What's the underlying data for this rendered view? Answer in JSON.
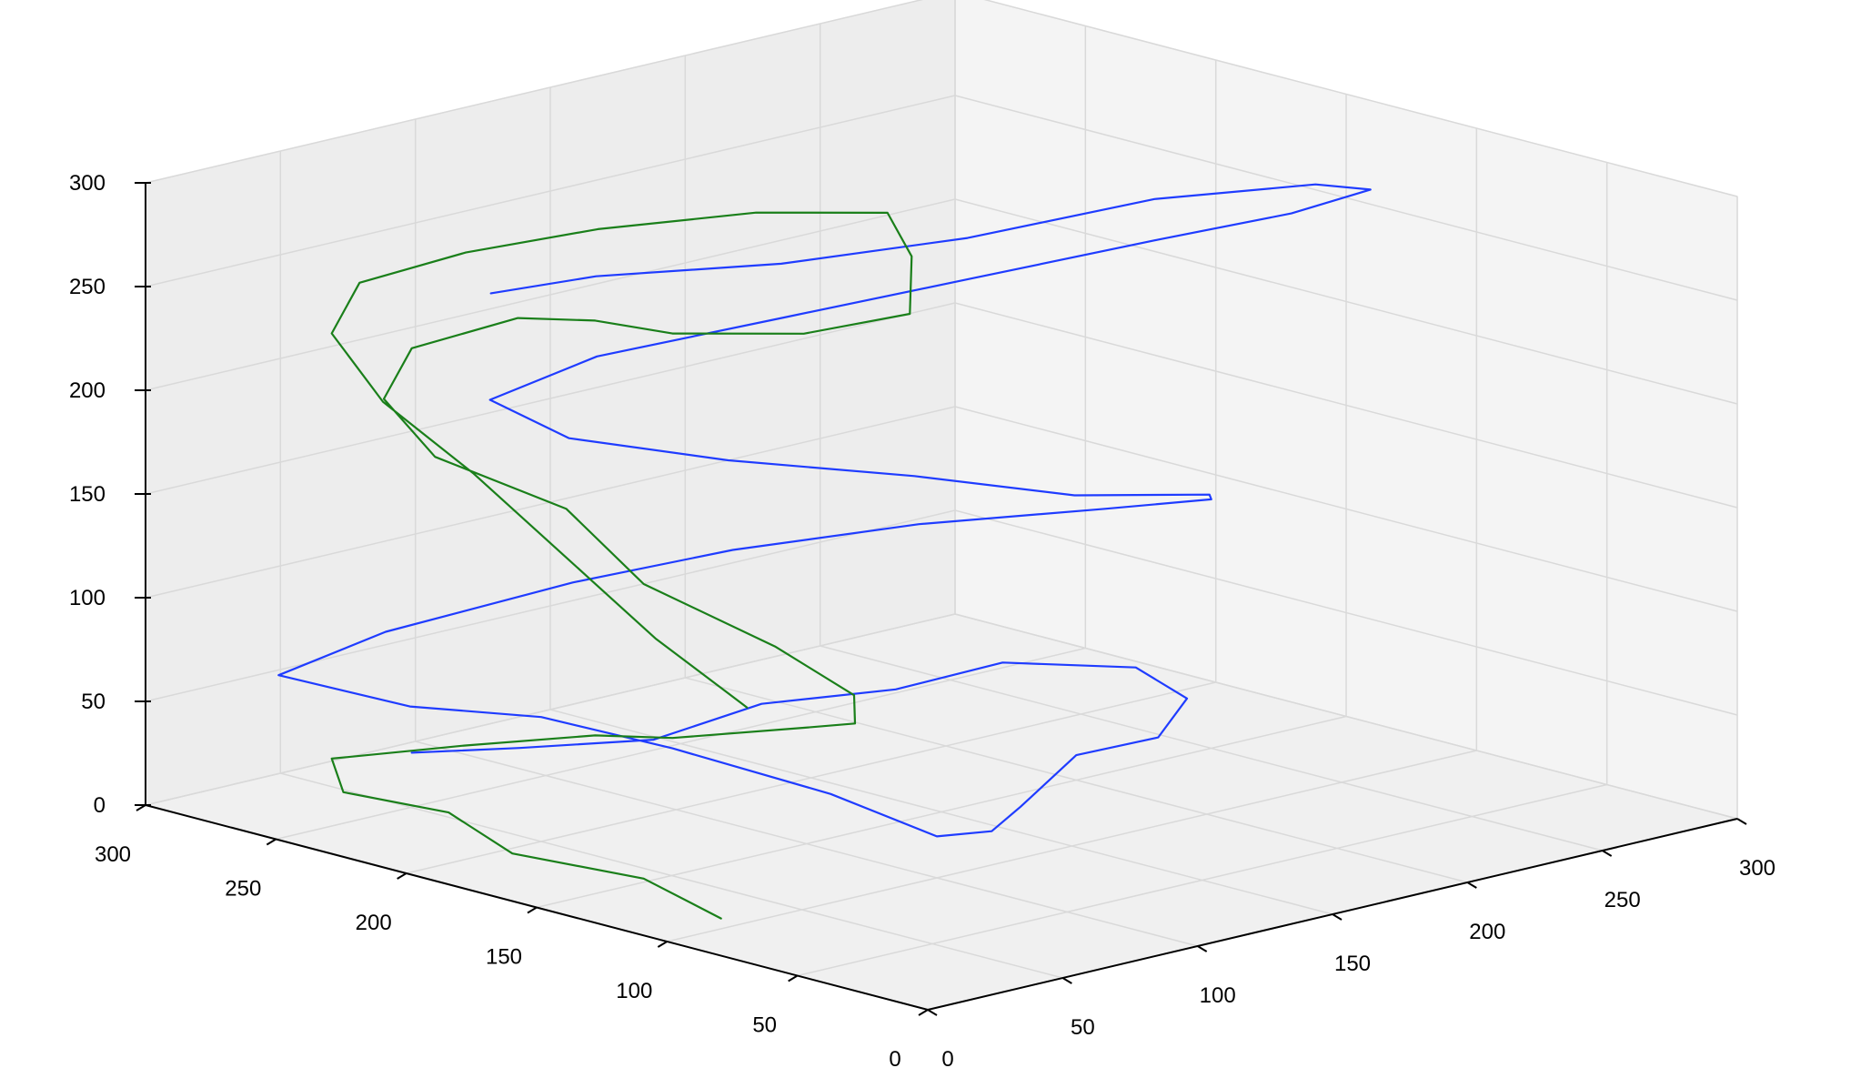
{
  "chart_data": {
    "type": "line",
    "projection": "3d",
    "title": "",
    "xlabel": "",
    "ylabel": "",
    "zlabel": "",
    "grid": true,
    "xlim": [
      0,
      300
    ],
    "ylim": [
      0,
      300
    ],
    "zlim": [
      0,
      300
    ],
    "x_ticks": [
      "0",
      "50",
      "100",
      "150",
      "200",
      "250",
      "300"
    ],
    "y_ticks": [
      "0",
      "50",
      "100",
      "150",
      "200",
      "250",
      "300"
    ],
    "z_ticks": [
      "0",
      "50",
      "100",
      "150",
      "200",
      "250",
      "300"
    ],
    "colors": {
      "blue": "#1f3cff",
      "green": "#1a7f1a",
      "pane": "#f2f2f2",
      "grid": "#d9d9d9"
    },
    "series": [
      {
        "color": "#1f3cff",
        "points": [
          [
            60,
            260,
            20
          ],
          [
            100,
            260,
            10
          ],
          [
            140,
            250,
            5
          ],
          [
            180,
            250,
            10
          ],
          [
            220,
            240,
            8
          ],
          [
            250,
            230,
            15
          ],
          [
            280,
            210,
            10
          ],
          [
            270,
            180,
            8
          ],
          [
            240,
            160,
            5
          ],
          [
            200,
            150,
            12
          ],
          [
            160,
            130,
            6
          ],
          [
            130,
            110,
            10
          ],
          [
            100,
            100,
            20
          ],
          [
            80,
            120,
            40
          ],
          [
            60,
            160,
            55
          ],
          [
            50,
            200,
            60
          ],
          [
            40,
            240,
            55
          ],
          [
            30,
            280,
            60
          ],
          [
            60,
            270,
            75
          ],
          [
            110,
            250,
            90
          ],
          [
            150,
            230,
            100
          ],
          [
            190,
            200,
            110
          ],
          [
            230,
            170,
            115
          ],
          [
            250,
            150,
            120
          ],
          [
            230,
            130,
            135
          ],
          [
            180,
            130,
            150
          ],
          [
            140,
            150,
            165
          ],
          [
            100,
            180,
            175
          ],
          [
            70,
            210,
            185
          ],
          [
            60,
            230,
            200
          ],
          [
            90,
            220,
            215
          ],
          [
            140,
            200,
            225
          ],
          [
            190,
            180,
            235
          ],
          [
            240,
            160,
            245
          ],
          [
            270,
            140,
            255
          ],
          [
            280,
            120,
            270
          ],
          [
            250,
            110,
            285
          ],
          [
            200,
            120,
            290
          ],
          [
            150,
            140,
            280
          ],
          [
            110,
            170,
            270
          ],
          [
            80,
            210,
            260
          ],
          [
            70,
            240,
            245
          ]
        ]
      },
      {
        "color": "#1a7f1a",
        "points": [
          [
            20,
            100,
            5
          ],
          [
            30,
            140,
            8
          ],
          [
            20,
            180,
            10
          ],
          [
            35,
            220,
            12
          ],
          [
            25,
            250,
            15
          ],
          [
            40,
            270,
            20
          ],
          [
            60,
            240,
            30
          ],
          [
            70,
            200,
            45
          ],
          [
            60,
            160,
            60
          ],
          [
            70,
            120,
            75
          ],
          [
            60,
            90,
            90
          ],
          [
            50,
            80,
            110
          ],
          [
            40,
            100,
            130
          ],
          [
            30,
            140,
            150
          ],
          [
            40,
            180,
            170
          ],
          [
            30,
            220,
            185
          ],
          [
            40,
            250,
            200
          ],
          [
            60,
            260,
            215
          ],
          [
            80,
            240,
            230
          ],
          [
            70,
            200,
            245
          ],
          [
            60,
            160,
            255
          ],
          [
            70,
            120,
            265
          ],
          [
            90,
            100,
            275
          ],
          [
            110,
            120,
            290
          ],
          [
            130,
            150,
            295
          ],
          [
            120,
            190,
            285
          ],
          [
            100,
            230,
            270
          ],
          [
            80,
            260,
            255
          ],
          [
            60,
            280,
            240
          ],
          [
            40,
            270,
            225
          ],
          [
            30,
            240,
            205
          ],
          [
            25,
            200,
            185
          ],
          [
            20,
            160,
            160
          ],
          [
            15,
            120,
            135
          ],
          [
            20,
            90,
            110
          ]
        ]
      }
    ]
  }
}
